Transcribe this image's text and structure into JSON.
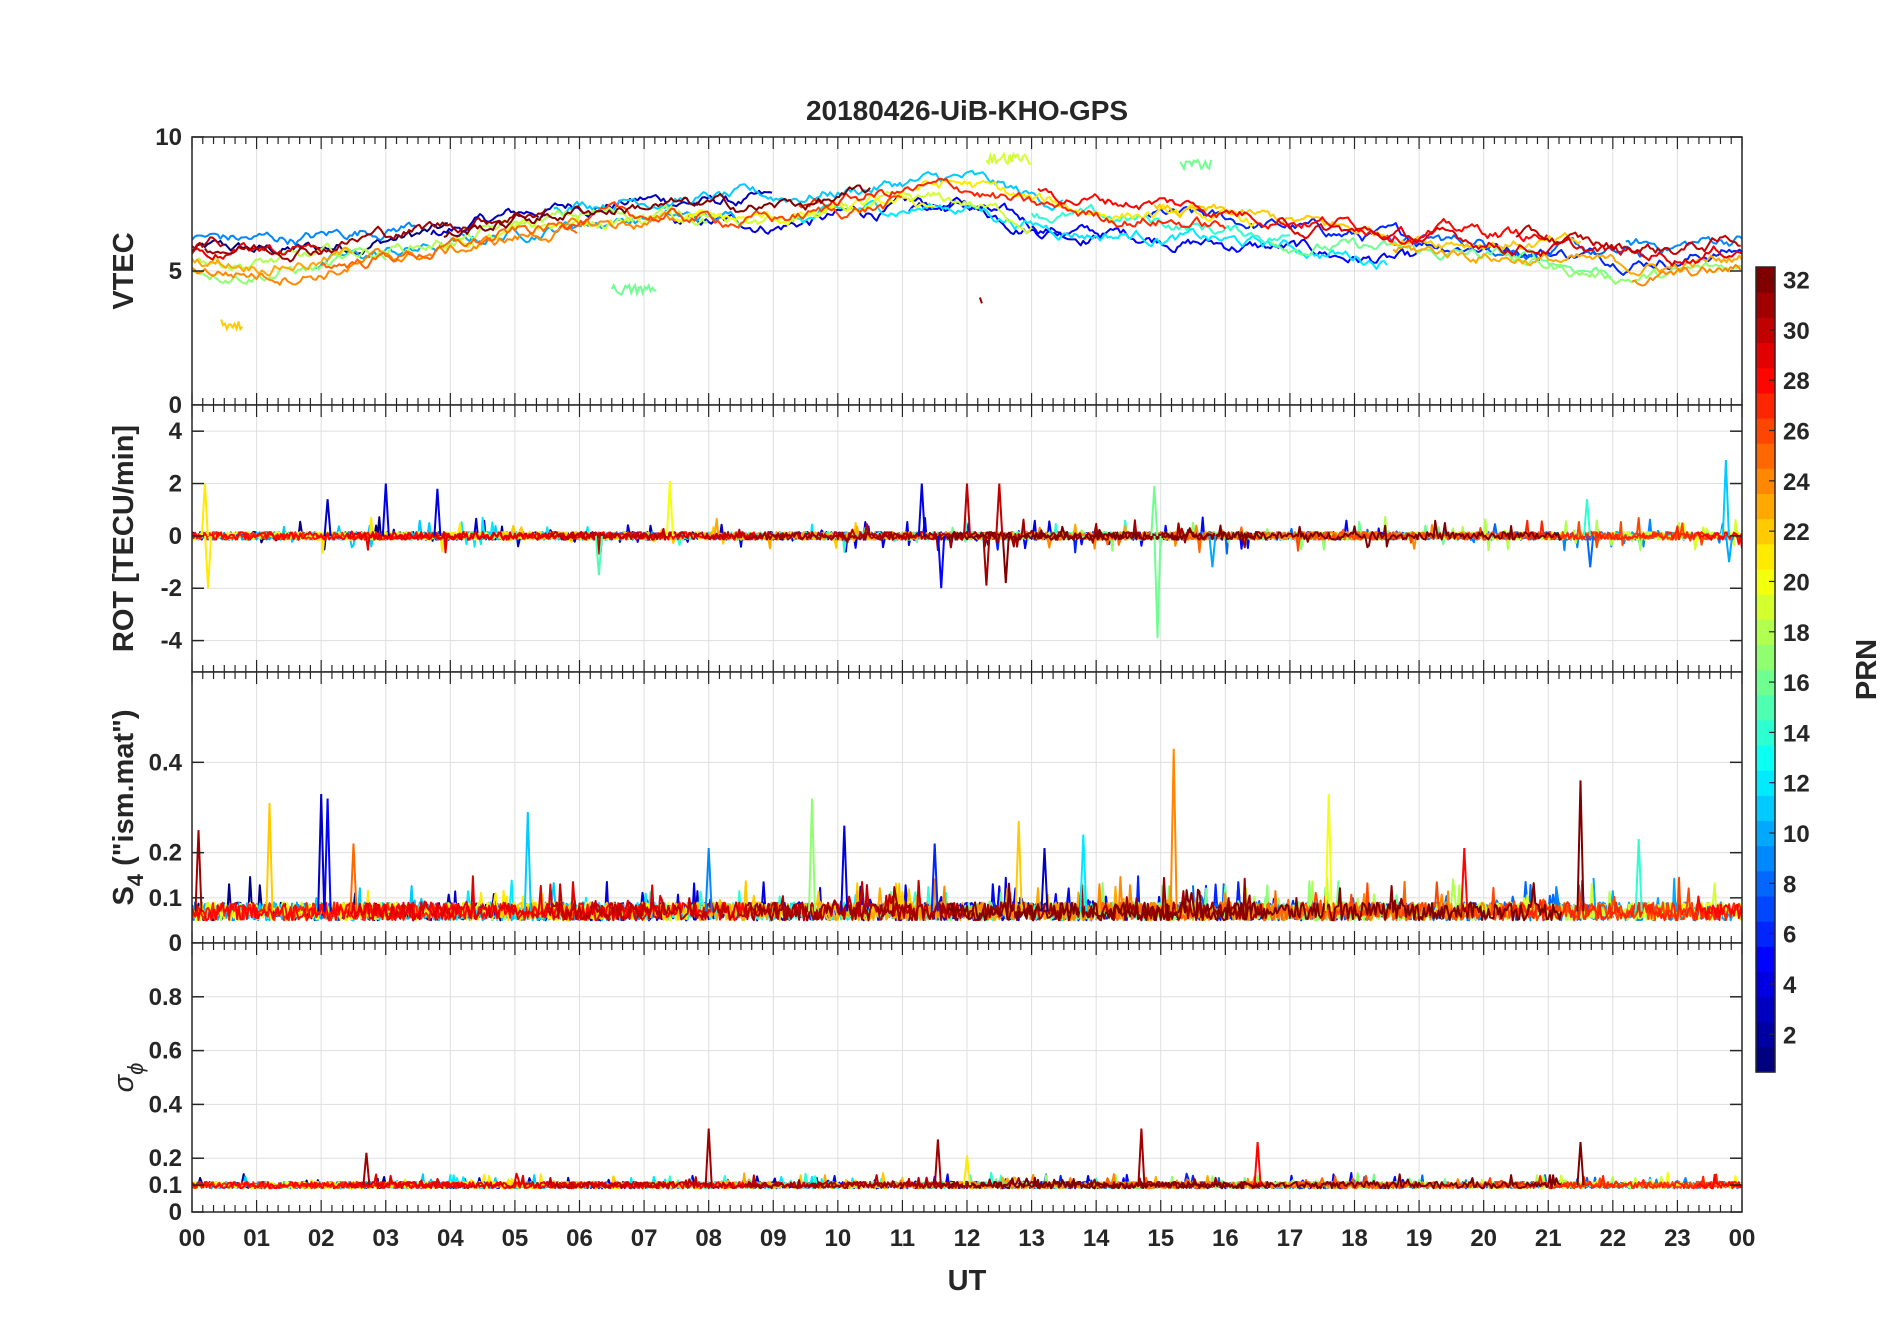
{
  "chart_data": {
    "type": "line",
    "title": "20180426-UiB-KHO-GPS",
    "xlabel": "UT",
    "x_ticks": [
      "00",
      "01",
      "02",
      "03",
      "04",
      "05",
      "06",
      "07",
      "08",
      "09",
      "10",
      "11",
      "12",
      "13",
      "14",
      "15",
      "16",
      "17",
      "18",
      "19",
      "20",
      "21",
      "22",
      "23",
      "00"
    ],
    "x_range_hours": [
      0,
      24
    ],
    "grid": true,
    "panels": [
      {
        "id": "vtec",
        "ylabel": "VTEC",
        "ylim": [
          0,
          10
        ],
        "yticks": [
          0,
          5,
          10
        ],
        "tick_labels": [
          "0",
          "5",
          "10"
        ],
        "baseline_profile": {
          "hours": [
            0,
            1,
            2,
            3,
            4,
            5,
            6,
            7,
            8,
            9,
            10,
            11,
            12,
            13,
            14,
            15,
            16,
            17,
            18,
            19,
            20,
            21,
            22,
            23,
            24
          ],
          "values": [
            5.6,
            5.5,
            5.6,
            6.0,
            6.3,
            6.8,
            7.2,
            7.4,
            7.3,
            7.3,
            7.6,
            7.9,
            8.0,
            7.3,
            7.0,
            6.9,
            6.6,
            6.4,
            6.1,
            5.9,
            5.8,
            5.6,
            5.3,
            5.3,
            5.6
          ]
        },
        "noise": 0.35,
        "highlights": [
          {
            "prn": 22,
            "start_hour": 0.45,
            "end_hour": 0.8,
            "value": 3.0
          },
          {
            "prn": 16,
            "start_hour": 6.5,
            "end_hour": 7.2,
            "value": 4.3
          },
          {
            "prn": 31,
            "start_hour": 12.2,
            "end_hour": 12.25,
            "value": 3.9
          },
          {
            "prn": 16,
            "start_hour": 15.3,
            "end_hour": 15.8,
            "value": 9.0
          },
          {
            "prn": 19,
            "start_hour": 12.3,
            "end_hour": 13.0,
            "value": 9.2
          }
        ]
      },
      {
        "id": "rot",
        "ylabel": "ROT [TECU/min]",
        "ylim": [
          -5.2,
          5
        ],
        "yticks": [
          -4,
          -2,
          0,
          2,
          4
        ],
        "tick_labels": [
          "-4",
          "-2",
          "0",
          "2",
          "4"
        ],
        "baseline": 0,
        "noise": 0.15,
        "spikes": [
          {
            "hour": 0.2,
            "value": 2.0,
            "prn": 21
          },
          {
            "hour": 0.25,
            "value": -2.0,
            "prn": 21
          },
          {
            "hour": 2.1,
            "value": 1.4,
            "prn": 3
          },
          {
            "hour": 3.0,
            "value": 2.0,
            "prn": 4
          },
          {
            "hour": 3.8,
            "value": 1.8,
            "prn": 4
          },
          {
            "hour": 6.3,
            "value": -1.5,
            "prn": 15
          },
          {
            "hour": 7.4,
            "value": 2.1,
            "prn": 20
          },
          {
            "hour": 11.3,
            "value": 2.0,
            "prn": 4
          },
          {
            "hour": 11.6,
            "value": -2.0,
            "prn": 5
          },
          {
            "hour": 12.0,
            "value": 2.0,
            "prn": 30
          },
          {
            "hour": 12.3,
            "value": -1.9,
            "prn": 31
          },
          {
            "hour": 12.5,
            "value": 2.0,
            "prn": 30
          },
          {
            "hour": 12.6,
            "value": -1.8,
            "prn": 32
          },
          {
            "hour": 14.9,
            "value": 1.9,
            "prn": 16
          },
          {
            "hour": 14.95,
            "value": -3.9,
            "prn": 16
          },
          {
            "hour": 15.8,
            "value": -1.2,
            "prn": 10
          },
          {
            "hour": 21.6,
            "value": 1.4,
            "prn": 14
          },
          {
            "hour": 21.65,
            "value": -1.2,
            "prn": 8
          },
          {
            "hour": 23.75,
            "value": 2.9,
            "prn": 11
          },
          {
            "hour": 23.8,
            "value": -1.0,
            "prn": 10
          }
        ]
      },
      {
        "id": "s4",
        "ylabel_main": "S",
        "ylabel_sub": "4",
        "ylabel_rest": " (\"ism.mat\")",
        "ylim": [
          0,
          0.6
        ],
        "yticks": [
          0,
          0.1,
          0.2,
          0.4
        ],
        "tick_labels": [
          "0",
          "0.1",
          "0.2",
          "0.4"
        ],
        "baseline": 0.07,
        "noise": 0.02,
        "spikes": [
          {
            "hour": 0.1,
            "value": 0.25,
            "prn": 31
          },
          {
            "hour": 1.2,
            "value": 0.31,
            "prn": 22
          },
          {
            "hour": 2.0,
            "value": 0.33,
            "prn": 3
          },
          {
            "hour": 2.1,
            "value": 0.32,
            "prn": 5
          },
          {
            "hour": 2.5,
            "value": 0.22,
            "prn": 25
          },
          {
            "hour": 5.2,
            "value": 0.29,
            "prn": 11
          },
          {
            "hour": 8.0,
            "value": 0.21,
            "prn": 9
          },
          {
            "hour": 9.6,
            "value": 0.32,
            "prn": 17
          },
          {
            "hour": 10.1,
            "value": 0.26,
            "prn": 4
          },
          {
            "hour": 11.5,
            "value": 0.22,
            "prn": 6
          },
          {
            "hour": 12.8,
            "value": 0.27,
            "prn": 22
          },
          {
            "hour": 13.2,
            "value": 0.21,
            "prn": 3
          },
          {
            "hour": 13.8,
            "value": 0.24,
            "prn": 12
          },
          {
            "hour": 15.2,
            "value": 0.43,
            "prn": 24
          },
          {
            "hour": 17.6,
            "value": 0.33,
            "prn": 20
          },
          {
            "hour": 19.7,
            "value": 0.21,
            "prn": 28
          },
          {
            "hour": 21.5,
            "value": 0.36,
            "prn": 32
          },
          {
            "hour": 22.4,
            "value": 0.23,
            "prn": 14
          }
        ]
      },
      {
        "id": "sigma_phi",
        "ylabel_main": "σ",
        "ylabel_sub": "ϕ",
        "ylim": [
          0,
          1
        ],
        "yticks": [
          0,
          0.1,
          0.2,
          0.4,
          0.6,
          0.8
        ],
        "tick_labels": [
          "0",
          "0.1",
          "0.2",
          "0.4",
          "0.6",
          "0.8"
        ],
        "baseline": 0.1,
        "noise": 0.012,
        "spikes": [
          {
            "hour": 2.7,
            "value": 0.22,
            "prn": 31
          },
          {
            "hour": 8.0,
            "value": 0.31,
            "prn": 31
          },
          {
            "hour": 11.55,
            "value": 0.27,
            "prn": 31
          },
          {
            "hour": 12.0,
            "value": 0.21,
            "prn": 21
          },
          {
            "hour": 14.7,
            "value": 0.31,
            "prn": 31
          },
          {
            "hour": 16.5,
            "value": 0.26,
            "prn": 28
          },
          {
            "hour": 21.5,
            "value": 0.26,
            "prn": 32
          }
        ]
      }
    ],
    "colorbar": {
      "label": "PRN",
      "range": [
        1,
        32
      ],
      "colormap": "jet",
      "ticks": [
        2,
        4,
        6,
        8,
        10,
        12,
        14,
        16,
        18,
        20,
        22,
        24,
        26,
        28,
        30,
        32
      ],
      "tick_labels": [
        "2",
        "4",
        "6",
        "8",
        "10",
        "12",
        "14",
        "16",
        "18",
        "20",
        "22",
        "24",
        "26",
        "28",
        "30",
        "32"
      ]
    },
    "series_prns": [
      1,
      3,
      4,
      5,
      6,
      8,
      9,
      10,
      11,
      12,
      14,
      16,
      17,
      18,
      19,
      20,
      21,
      22,
      23,
      24,
      25,
      26,
      27,
      28,
      29,
      30,
      31,
      32
    ]
  },
  "colors": {
    "axis": "#262626",
    "grid": "#dfdfdf",
    "background": "#ffffff"
  }
}
